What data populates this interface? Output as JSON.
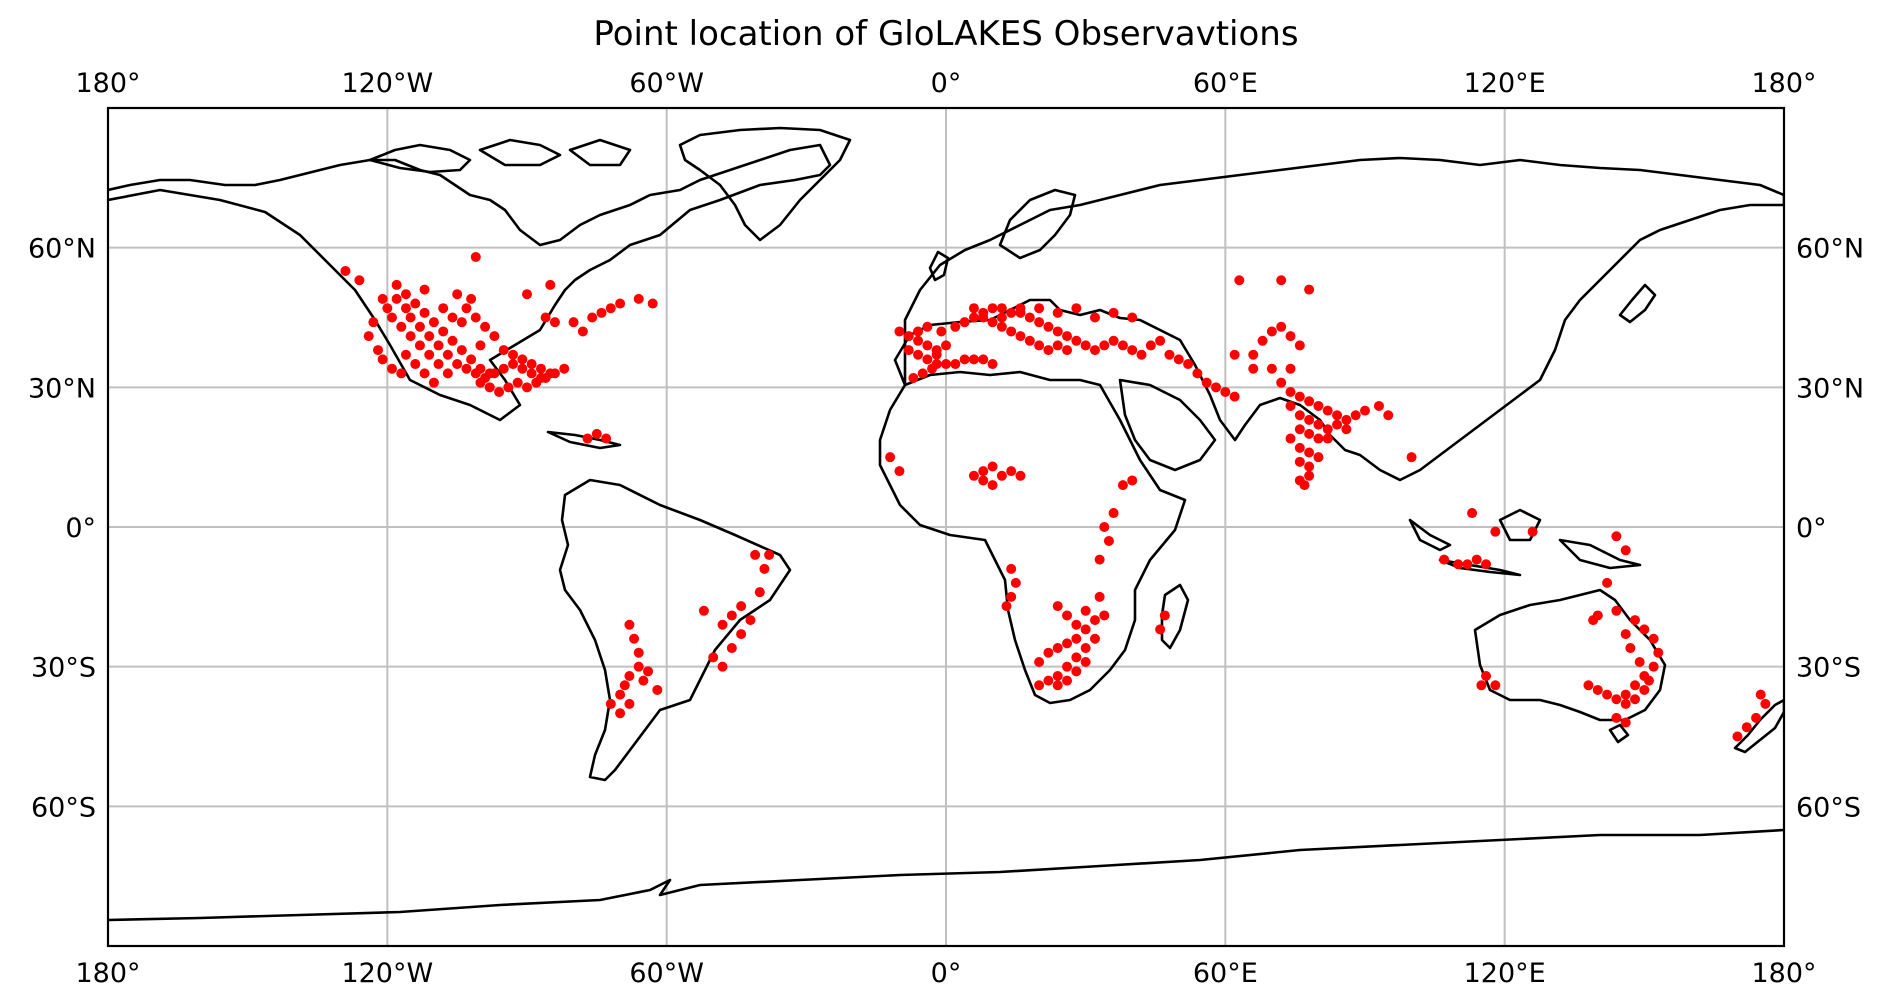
{
  "title": "Point location of GloLAKES Observavtions",
  "colors": {
    "points": "#ff0000",
    "grid": "#c0c0c0",
    "coastline": "#000000"
  },
  "map": {
    "projection": "PlateCarree",
    "lon_range": [
      -180,
      180
    ],
    "lat_range": [
      -90,
      90
    ],
    "grid": true,
    "lon_ticks": [
      {
        "value": -180,
        "label": "180°"
      },
      {
        "value": -120,
        "label": "120°W"
      },
      {
        "value": -60,
        "label": "60°W"
      },
      {
        "value": 0,
        "label": "0°"
      },
      {
        "value": 60,
        "label": "60°E"
      },
      {
        "value": 120,
        "label": "120°E"
      },
      {
        "value": 180,
        "label": "180°"
      }
    ],
    "lat_ticks": [
      {
        "value": 60,
        "label": "60°N"
      },
      {
        "value": 30,
        "label": "30°N"
      },
      {
        "value": 0,
        "label": "0°"
      },
      {
        "value": -30,
        "label": "30°S"
      },
      {
        "value": -60,
        "label": "60°S"
      }
    ]
  },
  "chart_data": {
    "type": "scatter",
    "title": "Point location of GloLAKES Observavtions",
    "xlabel": "",
    "ylabel": "",
    "xlim": [
      -180,
      180
    ],
    "ylim": [
      -90,
      90
    ],
    "marker_color": "#ff0000",
    "points_lonlat": [
      [
        -118,
        52
      ],
      [
        -116,
        50
      ],
      [
        -114,
        48
      ],
      [
        -112,
        46
      ],
      [
        -110,
        44
      ],
      [
        -108,
        42
      ],
      [
        -106,
        40
      ],
      [
        -104,
        38
      ],
      [
        -102,
        36
      ],
      [
        -100,
        34
      ],
      [
        -98,
        33
      ],
      [
        -115,
        45
      ],
      [
        -113,
        43
      ],
      [
        -111,
        41
      ],
      [
        -109,
        39
      ],
      [
        -107,
        37
      ],
      [
        -105,
        35
      ],
      [
        -103,
        34
      ],
      [
        -101,
        33
      ],
      [
        -99,
        32
      ],
      [
        -97,
        33
      ],
      [
        -95,
        34
      ],
      [
        -93,
        35
      ],
      [
        -91,
        34
      ],
      [
        -89,
        33
      ],
      [
        -87,
        32
      ],
      [
        -85,
        33
      ],
      [
        -120,
        47
      ],
      [
        -119,
        45
      ],
      [
        -117,
        43
      ],
      [
        -115,
        41
      ],
      [
        -113,
        39
      ],
      [
        -111,
        37
      ],
      [
        -109,
        35
      ],
      [
        -107,
        33
      ],
      [
        -122,
        38
      ],
      [
        -121,
        36
      ],
      [
        -119,
        34
      ],
      [
        -117,
        33
      ],
      [
        -124,
        41
      ],
      [
        -123,
        44
      ],
      [
        -121,
        49
      ],
      [
        -118,
        49
      ],
      [
        -116,
        47
      ],
      [
        -112,
        51
      ],
      [
        -105,
        50
      ],
      [
        -103,
        47
      ],
      [
        -101,
        45
      ],
      [
        -99,
        43
      ],
      [
        -97,
        41
      ],
      [
        -95,
        38
      ],
      [
        -93,
        37
      ],
      [
        -91,
        36
      ],
      [
        -89,
        35
      ],
      [
        -87,
        34
      ],
      [
        -100,
        31
      ],
      [
        -98,
        30
      ],
      [
        -96,
        29
      ],
      [
        -94,
        30
      ],
      [
        -92,
        31
      ],
      [
        -90,
        30
      ],
      [
        -88,
        31
      ],
      [
        -86,
        32
      ],
      [
        -84,
        33
      ],
      [
        -82,
        34
      ],
      [
        -110,
        31
      ],
      [
        -112,
        33
      ],
      [
        -114,
        35
      ],
      [
        -116,
        37
      ],
      [
        -104,
        44
      ],
      [
        -102,
        49
      ],
      [
        -100,
        39
      ],
      [
        -106,
        45
      ],
      [
        -108,
        47
      ],
      [
        -90,
        50
      ],
      [
        -86,
        45
      ],
      [
        -84,
        44
      ],
      [
        -80,
        44
      ],
      [
        -78,
        42
      ],
      [
        -76,
        45
      ],
      [
        -74,
        46
      ],
      [
        -72,
        47
      ],
      [
        -70,
        48
      ],
      [
        -66,
        49
      ],
      [
        -63,
        48
      ],
      [
        -77,
        19
      ],
      [
        -75,
        20
      ],
      [
        -73,
        19
      ],
      [
        -101,
        58
      ],
      [
        -85,
        52
      ],
      [
        -129,
        55
      ],
      [
        -126,
        53
      ],
      [
        -10,
        42
      ],
      [
        -8,
        41
      ],
      [
        -6,
        40
      ],
      [
        -4,
        39
      ],
      [
        -2,
        38
      ],
      [
        -8,
        38
      ],
      [
        -6,
        37
      ],
      [
        -4,
        36
      ],
      [
        -2,
        37
      ],
      [
        0,
        39
      ],
      [
        -6,
        42
      ],
      [
        -4,
        43
      ],
      [
        -1,
        42
      ],
      [
        2,
        43
      ],
      [
        4,
        44
      ],
      [
        6,
        45
      ],
      [
        8,
        46
      ],
      [
        10,
        47
      ],
      [
        12,
        47
      ],
      [
        14,
        46
      ],
      [
        16,
        46
      ],
      [
        18,
        45
      ],
      [
        20,
        44
      ],
      [
        22,
        43
      ],
      [
        24,
        42
      ],
      [
        26,
        41
      ],
      [
        28,
        40
      ],
      [
        30,
        39
      ],
      [
        32,
        38
      ],
      [
        34,
        39
      ],
      [
        36,
        40
      ],
      [
        38,
        39
      ],
      [
        40,
        38
      ],
      [
        42,
        37
      ],
      [
        44,
        39
      ],
      [
        46,
        40
      ],
      [
        48,
        37
      ],
      [
        50,
        36
      ],
      [
        52,
        35
      ],
      [
        54,
        33
      ],
      [
        56,
        31
      ],
      [
        58,
        30
      ],
      [
        60,
        29
      ],
      [
        62,
        28
      ],
      [
        10,
        44
      ],
      [
        12,
        43
      ],
      [
        14,
        42
      ],
      [
        16,
        41
      ],
      [
        18,
        40
      ],
      [
        20,
        39
      ],
      [
        22,
        38
      ],
      [
        24,
        39
      ],
      [
        26,
        38
      ],
      [
        -2,
        35
      ],
      [
        0,
        35
      ],
      [
        2,
        35
      ],
      [
        4,
        36
      ],
      [
        6,
        36
      ],
      [
        8,
        36
      ],
      [
        10,
        35
      ],
      [
        -5,
        33
      ],
      [
        -7,
        32
      ],
      [
        -3,
        34
      ],
      [
        6,
        47
      ],
      [
        8,
        45
      ],
      [
        12,
        45
      ],
      [
        16,
        47
      ],
      [
        20,
        47
      ],
      [
        24,
        46
      ],
      [
        28,
        47
      ],
      [
        32,
        45
      ],
      [
        36,
        46
      ],
      [
        40,
        45
      ],
      [
        63,
        53
      ],
      [
        72,
        53
      ],
      [
        78,
        51
      ],
      [
        62,
        37
      ],
      [
        66,
        37
      ],
      [
        68,
        40
      ],
      [
        70,
        42
      ],
      [
        72,
        43
      ],
      [
        74,
        41
      ],
      [
        76,
        39
      ],
      [
        66,
        34
      ],
      [
        70,
        34
      ],
      [
        74,
        34
      ],
      [
        72,
        31
      ],
      [
        74,
        29
      ],
      [
        76,
        28
      ],
      [
        78,
        27
      ],
      [
        80,
        26
      ],
      [
        82,
        25
      ],
      [
        84,
        24
      ],
      [
        86,
        23
      ],
      [
        88,
        24
      ],
      [
        90,
        25
      ],
      [
        74,
        26
      ],
      [
        76,
        24
      ],
      [
        78,
        23
      ],
      [
        80,
        22
      ],
      [
        82,
        21
      ],
      [
        84,
        22
      ],
      [
        86,
        21
      ],
      [
        76,
        21
      ],
      [
        78,
        20
      ],
      [
        80,
        19
      ],
      [
        82,
        19
      ],
      [
        74,
        19
      ],
      [
        76,
        17
      ],
      [
        78,
        16
      ],
      [
        80,
        15
      ],
      [
        76,
        14
      ],
      [
        78,
        13
      ],
      [
        78,
        11
      ],
      [
        76,
        10
      ],
      [
        77,
        9
      ],
      [
        93,
        26
      ],
      [
        95,
        24
      ],
      [
        -12,
        15
      ],
      [
        -10,
        12
      ],
      [
        6,
        11
      ],
      [
        8,
        12
      ],
      [
        10,
        13
      ],
      [
        12,
        11
      ],
      [
        14,
        12
      ],
      [
        16,
        11
      ],
      [
        8,
        10
      ],
      [
        10,
        9
      ],
      [
        38,
        9
      ],
      [
        40,
        10
      ],
      [
        36,
        3
      ],
      [
        34,
        0
      ],
      [
        35,
        -3
      ],
      [
        33,
        -7
      ],
      [
        14,
        -9
      ],
      [
        15,
        -12
      ],
      [
        14,
        -15
      ],
      [
        13,
        -17
      ],
      [
        24,
        -17
      ],
      [
        26,
        -19
      ],
      [
        28,
        -21
      ],
      [
        30,
        -22
      ],
      [
        32,
        -24
      ],
      [
        28,
        -24
      ],
      [
        26,
        -25
      ],
      [
        24,
        -26
      ],
      [
        22,
        -27
      ],
      [
        20,
        -29
      ],
      [
        30,
        -26
      ],
      [
        28,
        -28
      ],
      [
        26,
        -30
      ],
      [
        24,
        -32
      ],
      [
        22,
        -33
      ],
      [
        20,
        -34
      ],
      [
        30,
        -29
      ],
      [
        28,
        -31
      ],
      [
        26,
        -33
      ],
      [
        24,
        -34
      ],
      [
        30,
        -18
      ],
      [
        32,
        -20
      ],
      [
        34,
        -19
      ],
      [
        33,
        -15
      ],
      [
        47,
        -19
      ],
      [
        46,
        -22
      ],
      [
        -68,
        -21
      ],
      [
        -67,
        -24
      ],
      [
        -66,
        -27
      ],
      [
        -66,
        -30
      ],
      [
        -68,
        -32
      ],
      [
        -69,
        -34
      ],
      [
        -70,
        -36
      ],
      [
        -72,
        -38
      ],
      [
        -70,
        -40
      ],
      [
        -68,
        -38
      ],
      [
        -64,
        -31
      ],
      [
        -65,
        -33
      ],
      [
        -62,
        -35
      ],
      [
        -50,
        -28
      ],
      [
        -48,
        -30
      ],
      [
        -46,
        -26
      ],
      [
        -44,
        -23
      ],
      [
        -42,
        -20
      ],
      [
        -40,
        -14
      ],
      [
        -39,
        -9
      ],
      [
        -38,
        -6
      ],
      [
        -41,
        -6
      ],
      [
        -44,
        -17
      ],
      [
        -46,
        -19
      ],
      [
        -48,
        -21
      ],
      [
        -52,
        -18
      ],
      [
        100,
        15
      ],
      [
        113,
        3
      ],
      [
        118,
        -1
      ],
      [
        126,
        -1
      ],
      [
        107,
        -7
      ],
      [
        110,
        -8
      ],
      [
        112,
        -8
      ],
      [
        114,
        -7
      ],
      [
        116,
        -8
      ],
      [
        144,
        -2
      ],
      [
        146,
        -5
      ],
      [
        142,
        -12
      ],
      [
        144,
        -18
      ],
      [
        148,
        -20
      ],
      [
        150,
        -22
      ],
      [
        152,
        -24
      ],
      [
        153,
        -27
      ],
      [
        152,
        -30
      ],
      [
        151,
        -33
      ],
      [
        150,
        -35
      ],
      [
        148,
        -37
      ],
      [
        146,
        -38
      ],
      [
        144,
        -37
      ],
      [
        142,
        -36
      ],
      [
        140,
        -35
      ],
      [
        138,
        -34
      ],
      [
        146,
        -36
      ],
      [
        148,
        -34
      ],
      [
        150,
        -32
      ],
      [
        149,
        -29
      ],
      [
        147,
        -26
      ],
      [
        146,
        -23
      ],
      [
        139,
        -20
      ],
      [
        140,
        -19
      ],
      [
        116,
        -32
      ],
      [
        118,
        -34
      ],
      [
        115,
        -34
      ],
      [
        146,
        -42
      ],
      [
        144,
        -41
      ],
      [
        176,
        -38
      ],
      [
        174,
        -41
      ],
      [
        172,
        -43
      ],
      [
        170,
        -45
      ],
      [
        175,
        -36
      ]
    ]
  }
}
